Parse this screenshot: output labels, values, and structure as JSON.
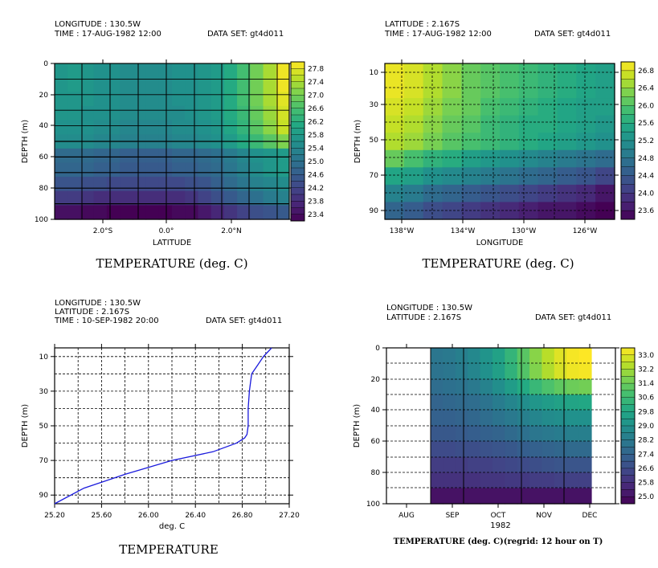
{
  "chart_data": [
    {
      "type": "heatmap",
      "header": [
        "LONGITUDE : 130.5W",
        "TIME : 17-AUG-1982 12:00"
      ],
      "dataset": "DATA SET: gt4d011",
      "title": "TEMPERATURE (deg. C)",
      "xlabel": "LATITUDE",
      "ylabel": "DEPTH (m)",
      "x_ticks": [
        "2.0°S",
        "0.0°",
        "2.0°N"
      ],
      "y_ticks": [
        "0",
        "20",
        "40",
        "60",
        "80",
        "100"
      ],
      "colorbar_labels": [
        "27.8",
        "27.4",
        "27.0",
        "26.6",
        "26.2",
        "25.8",
        "25.4",
        "25.0",
        "24.6",
        "24.2",
        "23.8",
        "23.4"
      ],
      "vmin": 23.4,
      "vmax": 28.0,
      "grid": true,
      "rows": [
        [
          25.8,
          25.9,
          25.8,
          25.7,
          25.7,
          25.6,
          25.6,
          25.6,
          25.6,
          25.7,
          25.7,
          25.8,
          25.9,
          26.2,
          26.6,
          27.0,
          27.4,
          27.9
        ],
        [
          25.8,
          25.9,
          25.8,
          25.7,
          25.7,
          25.6,
          25.6,
          25.6,
          25.6,
          25.7,
          25.7,
          25.8,
          25.9,
          26.2,
          26.6,
          27.0,
          27.4,
          27.9
        ],
        [
          25.8,
          25.8,
          25.8,
          25.7,
          25.7,
          25.6,
          25.6,
          25.6,
          25.6,
          25.7,
          25.7,
          25.8,
          25.9,
          26.2,
          26.6,
          27.0,
          27.4,
          27.8
        ],
        [
          25.8,
          25.8,
          25.7,
          25.7,
          25.7,
          25.6,
          25.6,
          25.6,
          25.6,
          25.6,
          25.7,
          25.8,
          25.9,
          26.2,
          26.5,
          26.9,
          27.3,
          27.7
        ],
        [
          25.7,
          25.7,
          25.7,
          25.6,
          25.6,
          25.5,
          25.5,
          25.5,
          25.5,
          25.6,
          25.6,
          25.7,
          25.8,
          26.1,
          26.4,
          26.8,
          27.2,
          27.6
        ],
        [
          25.6,
          25.6,
          25.6,
          25.5,
          25.5,
          25.4,
          25.4,
          25.4,
          25.4,
          25.5,
          25.5,
          25.6,
          25.7,
          25.9,
          26.2,
          26.5,
          26.8,
          27.1
        ],
        [
          25.0,
          25.0,
          25.0,
          24.9,
          24.9,
          24.8,
          24.8,
          24.8,
          24.8,
          24.9,
          24.9,
          25.0,
          25.1,
          25.3,
          25.5,
          25.7,
          25.8,
          25.9
        ],
        [
          24.9,
          24.9,
          24.9,
          24.8,
          24.8,
          24.7,
          24.7,
          24.7,
          24.7,
          24.8,
          24.8,
          24.9,
          25.0,
          25.2,
          25.4,
          25.6,
          25.8,
          25.9
        ],
        [
          24.6,
          24.6,
          24.5,
          24.5,
          24.4,
          24.4,
          24.4,
          24.4,
          24.4,
          24.4,
          24.5,
          24.6,
          24.8,
          25.0,
          25.2,
          25.4,
          25.5,
          25.6
        ],
        [
          24.2,
          24.2,
          24.1,
          24.0,
          24.0,
          24.0,
          24.0,
          24.0,
          24.0,
          24.0,
          24.1,
          24.3,
          24.5,
          24.7,
          24.9,
          25.1,
          25.3,
          25.4
        ],
        [
          23.6,
          23.6,
          23.5,
          23.5,
          23.4,
          23.4,
          23.4,
          23.4,
          23.4,
          23.5,
          23.5,
          23.7,
          23.9,
          24.1,
          24.3,
          24.5,
          24.6,
          24.7
        ]
      ]
    },
    {
      "type": "heatmap",
      "header": [
        "LATITUDE : 2.167S",
        "TIME : 17-AUG-1982 12:00"
      ],
      "dataset": "DATA SET: gt4d011",
      "title": "TEMPERATURE (deg. C)",
      "xlabel": "LONGITUDE",
      "ylabel": "DEPTH (m)",
      "x_ticks": [
        "138°W",
        "134°W",
        "130°W",
        "126°W"
      ],
      "y_ticks": [
        "10",
        "30",
        "50",
        "70",
        "90"
      ],
      "colorbar_labels": [
        "26.8",
        "26.4",
        "26.0",
        "25.6",
        "25.2",
        "24.8",
        "24.4",
        "24.0",
        "23.6"
      ],
      "vmin": 23.6,
      "vmax": 27.0,
      "grid": true,
      "rows": [
        [
          26.9,
          26.8,
          26.6,
          26.4,
          26.2,
          26.1,
          26.0,
          25.9,
          25.8,
          25.7,
          25.6,
          25.5
        ],
        [
          26.9,
          26.8,
          26.6,
          26.4,
          26.2,
          26.1,
          26.0,
          25.9,
          25.8,
          25.7,
          25.6,
          25.5
        ],
        [
          26.8,
          26.7,
          26.5,
          26.3,
          26.2,
          26.0,
          25.9,
          25.8,
          25.7,
          25.6,
          25.5,
          25.5
        ],
        [
          26.7,
          26.6,
          26.4,
          26.2,
          26.1,
          25.9,
          25.8,
          25.7,
          25.7,
          25.6,
          25.5,
          25.4
        ],
        [
          26.6,
          26.5,
          26.3,
          26.1,
          26.0,
          25.9,
          25.8,
          25.7,
          25.6,
          25.5,
          25.4,
          25.3
        ],
        [
          26.2,
          26.0,
          25.8,
          25.7,
          25.5,
          25.4,
          25.3,
          25.2,
          25.1,
          25.0,
          24.9,
          24.8
        ],
        [
          25.6,
          25.5,
          25.3,
          25.2,
          25.1,
          25.0,
          24.9,
          24.8,
          24.7,
          24.6,
          24.5,
          24.3
        ],
        [
          25.1,
          25.0,
          24.8,
          24.7,
          24.6,
          24.5,
          24.4,
          24.3,
          24.2,
          24.1,
          24.0,
          23.8
        ],
        [
          24.7,
          24.6,
          24.4,
          24.3,
          24.2,
          24.1,
          24.0,
          23.9,
          23.8,
          23.8,
          23.7,
          23.6
        ]
      ]
    },
    {
      "type": "line",
      "header": [
        "LONGITUDE : 130.5W",
        "LATITUDE : 2.167S",
        "TIME : 10-SEP-1982 20:00"
      ],
      "dataset": "DATA SET: gt4d011",
      "title": "TEMPERATURE",
      "xlabel": "deg. C",
      "ylabel": "DEPTH (m)",
      "x_ticks": [
        "25.20",
        "25.60",
        "26.00",
        "26.40",
        "26.80",
        "27.20"
      ],
      "y_ticks": [
        "10",
        "30",
        "50",
        "70",
        "90"
      ],
      "xlim": [
        25.2,
        27.2
      ],
      "ylim": [
        95,
        5
      ],
      "grid": true,
      "series": [
        {
          "color": "#1a1adc",
          "x": [
            27.05,
            26.98,
            26.93,
            26.88,
            26.87,
            26.86,
            26.85,
            26.85,
            26.84,
            26.82,
            26.75,
            26.55,
            26.2,
            25.8,
            25.45,
            25.2
          ],
          "y": [
            5,
            10,
            15,
            20,
            25,
            30,
            40,
            50,
            55,
            57,
            60,
            65,
            70,
            78,
            86,
            95
          ]
        }
      ]
    },
    {
      "type": "heatmap",
      "header": [
        "LONGITUDE : 130.5W",
        "LATITUDE : 2.167S"
      ],
      "dataset": "DATA SET: gt4d011",
      "title": "TEMPERATURE (deg. C)(regrid: 12 hour on T)",
      "xlabel": "1982",
      "ylabel": "DEPTH (m)",
      "x_ticks": [
        "AUG",
        "SEP",
        "OCT",
        "NOV",
        "DEC"
      ],
      "y_ticks": [
        "0",
        "20",
        "40",
        "60",
        "80",
        "100"
      ],
      "colorbar_labels": [
        "33.0",
        "32.2",
        "31.4",
        "30.6",
        "29.8",
        "29.0",
        "28.2",
        "27.4",
        "26.6",
        "25.8",
        "25.0"
      ],
      "vmin": 25.0,
      "vmax": 33.4,
      "grid": true,
      "rows": [
        [
          28.3,
          28.4,
          28.6,
          28.9,
          29.3,
          29.8,
          30.5,
          31.2,
          31.9,
          32.5,
          33.0,
          33.3,
          33.4
        ],
        [
          28.2,
          28.3,
          28.5,
          28.8,
          29.2,
          29.7,
          30.4,
          31.1,
          31.8,
          32.4,
          32.9,
          33.2,
          33.3
        ],
        [
          28.0,
          28.1,
          28.2,
          28.4,
          28.7,
          29.1,
          29.6,
          30.1,
          30.6,
          31.0,
          31.3,
          31.5,
          31.6
        ],
        [
          27.7,
          27.8,
          27.9,
          28.0,
          28.2,
          28.5,
          28.8,
          29.1,
          29.4,
          29.6,
          29.8,
          29.9,
          30.0
        ],
        [
          27.6,
          27.6,
          27.7,
          27.8,
          28.0,
          28.2,
          28.4,
          28.6,
          28.8,
          29.0,
          29.1,
          29.2,
          29.2
        ],
        [
          27.3,
          27.3,
          27.4,
          27.5,
          27.6,
          27.7,
          27.9,
          28.1,
          28.3,
          28.4,
          28.5,
          28.6,
          28.6
        ],
        [
          26.9,
          26.9,
          27.0,
          27.0,
          27.1,
          27.2,
          27.3,
          27.5,
          27.6,
          27.7,
          27.8,
          27.9,
          27.9
        ],
        [
          26.5,
          26.5,
          26.5,
          26.6,
          26.6,
          26.7,
          26.8,
          26.9,
          27.0,
          27.1,
          27.2,
          27.2,
          27.2
        ],
        [
          26.2,
          26.2,
          26.2,
          26.2,
          26.3,
          26.3,
          26.4,
          26.4,
          26.5,
          26.5,
          26.6,
          26.6,
          26.6
        ],
        [
          25.4,
          25.4,
          25.4,
          25.4,
          25.4,
          25.4,
          25.4,
          25.4,
          25.4,
          25.4,
          25.4,
          25.4,
          25.4
        ]
      ]
    }
  ]
}
